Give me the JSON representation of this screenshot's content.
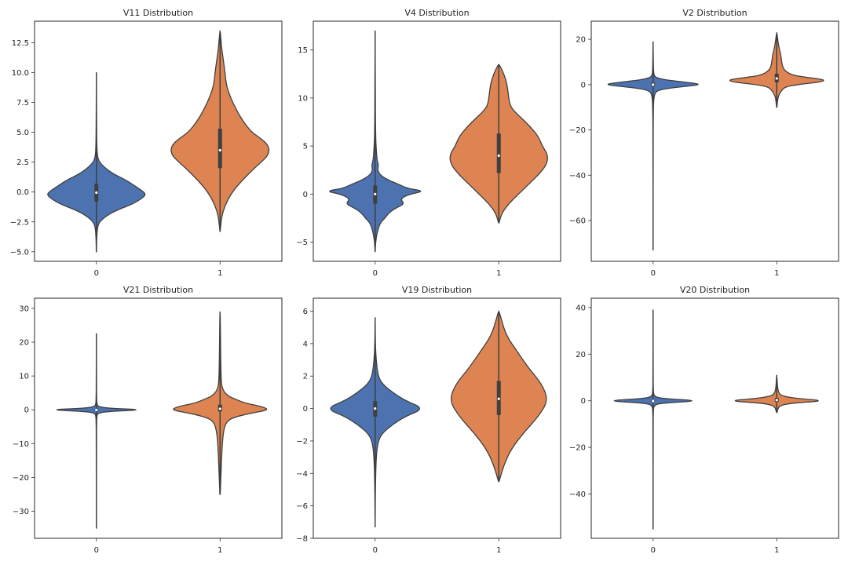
{
  "chart_data": [
    {
      "type": "violin",
      "title": "V11 Distribution",
      "xlabel": "",
      "ylabel": "",
      "categories": [
        "0",
        "1"
      ],
      "colors": [
        "#4c72b0",
        "#dd8452"
      ],
      "ylim": [
        -5.8,
        14.3
      ],
      "yticks": [
        -5.0,
        -2.5,
        0.0,
        2.5,
        5.0,
        7.5,
        10.0,
        12.5
      ],
      "ytick_labels": [
        "−5.0",
        "−2.5",
        "0.0",
        "2.5",
        "5.0",
        "7.5",
        "10.0",
        "12.5"
      ],
      "violins": [
        {
          "category": "0",
          "min": -5.0,
          "max": 10.0,
          "q1": -0.8,
          "median": -0.05,
          "q3": 0.7,
          "density": [
            [
              -5.0,
              0.002
            ],
            [
              -4.0,
              0.005
            ],
            [
              -3.0,
              0.02
            ],
            [
              -2.5,
              0.06
            ],
            [
              -2.0,
              0.2
            ],
            [
              -1.5,
              0.42
            ],
            [
              -1.0,
              0.74
            ],
            [
              -0.5,
              0.93
            ],
            [
              -0.2,
              1.0
            ],
            [
              0.1,
              0.93
            ],
            [
              0.5,
              0.78
            ],
            [
              1.0,
              0.6
            ],
            [
              1.5,
              0.35
            ],
            [
              2.0,
              0.18
            ],
            [
              2.5,
              0.06
            ],
            [
              3.0,
              0.02
            ],
            [
              4.0,
              0.008
            ],
            [
              6.0,
              0.004
            ],
            [
              8.0,
              0.002
            ],
            [
              10.0,
              0.001
            ]
          ]
        },
        {
          "category": "1",
          "min": -3.3,
          "max": 13.5,
          "q1": 2.0,
          "median": 3.5,
          "q3": 5.3,
          "density": [
            [
              -3.3,
              0.002
            ],
            [
              -2.0,
              0.03
            ],
            [
              -1.0,
              0.1
            ],
            [
              0.0,
              0.22
            ],
            [
              1.0,
              0.4
            ],
            [
              2.0,
              0.62
            ],
            [
              2.5,
              0.74
            ],
            [
              3.0,
              0.85
            ],
            [
              3.5,
              0.89
            ],
            [
              4.0,
              0.85
            ],
            [
              4.5,
              0.73
            ],
            [
              5.0,
              0.57
            ],
            [
              6.0,
              0.4
            ],
            [
              7.0,
              0.28
            ],
            [
              8.0,
              0.18
            ],
            [
              9.0,
              0.11
            ],
            [
              10.0,
              0.09
            ],
            [
              11.0,
              0.06
            ],
            [
              12.0,
              0.03
            ],
            [
              13.0,
              0.012
            ],
            [
              13.5,
              0.002
            ]
          ]
        }
      ]
    },
    {
      "type": "violin",
      "title": "V4 Distribution",
      "xlabel": "",
      "ylabel": "",
      "categories": [
        "0",
        "1"
      ],
      "colors": [
        "#4c72b0",
        "#dd8452"
      ],
      "ylim": [
        -7.0,
        18.0
      ],
      "yticks": [
        -5,
        0,
        5,
        10,
        15
      ],
      "ytick_labels": [
        "−5",
        "0",
        "5",
        "10",
        "15"
      ],
      "violins": [
        {
          "category": "0",
          "min": -6.0,
          "max": 17.0,
          "q1": -1.0,
          "median": 0.0,
          "q3": 0.9,
          "density": [
            [
              -6.0,
              0.002
            ],
            [
              -5.0,
              0.01
            ],
            [
              -4.0,
              0.04
            ],
            [
              -3.0,
              0.1
            ],
            [
              -2.5,
              0.2
            ],
            [
              -2.0,
              0.27
            ],
            [
              -1.5,
              0.4
            ],
            [
              -1.0,
              0.6
            ],
            [
              -0.5,
              0.5
            ],
            [
              0.0,
              0.7
            ],
            [
              0.3,
              1.0
            ],
            [
              0.6,
              0.65
            ],
            [
              1.0,
              0.48
            ],
            [
              1.5,
              0.25
            ],
            [
              2.0,
              0.1
            ],
            [
              2.5,
              0.05
            ],
            [
              3.0,
              0.07
            ],
            [
              3.5,
              0.04
            ],
            [
              4.5,
              0.025
            ],
            [
              6.0,
              0.01
            ],
            [
              10.0,
              0.004
            ],
            [
              17.0,
              0.001
            ]
          ]
        },
        {
          "category": "1",
          "min": -3.0,
          "max": 13.5,
          "q1": 2.2,
          "median": 4.0,
          "q3": 6.3,
          "density": [
            [
              -3.0,
              0.002
            ],
            [
              -2.0,
              0.03
            ],
            [
              -1.0,
              0.1
            ],
            [
              0.0,
              0.2
            ],
            [
              1.0,
              0.3
            ],
            [
              2.0,
              0.4
            ],
            [
              3.0,
              0.48
            ],
            [
              4.0,
              0.5
            ],
            [
              5.0,
              0.44
            ],
            [
              6.0,
              0.4
            ],
            [
              7.0,
              0.32
            ],
            [
              8.0,
              0.22
            ],
            [
              9.0,
              0.12
            ],
            [
              10.0,
              0.1
            ],
            [
              11.0,
              0.09
            ],
            [
              12.0,
              0.07
            ],
            [
              13.0,
              0.03
            ],
            [
              13.5,
              0.002
            ]
          ]
        }
      ]
    },
    {
      "type": "violin",
      "title": "V2 Distribution",
      "xlabel": "",
      "ylabel": "",
      "categories": [
        "0",
        "1"
      ],
      "colors": [
        "#4c72b0",
        "#dd8452"
      ],
      "ylim": [
        -78,
        28
      ],
      "yticks": [
        -60,
        -40,
        -20,
        0,
        20
      ],
      "ytick_labels": [
        "−60",
        "−40",
        "−20",
        "0",
        "20"
      ],
      "violins": [
        {
          "category": "0",
          "min": -73.0,
          "max": 19.0,
          "q1": -0.6,
          "median": 0.0,
          "q3": 0.9,
          "density": [
            [
              -73.0,
              0.001
            ],
            [
              -30.0,
              0.002
            ],
            [
              -10.0,
              0.005
            ],
            [
              -5.0,
              0.02
            ],
            [
              -3.0,
              0.06
            ],
            [
              -2.0,
              0.2
            ],
            [
              -1.0,
              0.55
            ],
            [
              0.0,
              1.0
            ],
            [
              1.0,
              0.7
            ],
            [
              2.0,
              0.28
            ],
            [
              3.0,
              0.07
            ],
            [
              4.0,
              0.02
            ],
            [
              6.0,
              0.01
            ],
            [
              10.0,
              0.005
            ],
            [
              19.0,
              0.001
            ]
          ]
        },
        {
          "category": "1",
          "min": -10.0,
          "max": 23.0,
          "q1": 1.0,
          "median": 2.7,
          "q3": 4.8,
          "density": [
            [
              -10.0,
              0.002
            ],
            [
              -7.0,
              0.01
            ],
            [
              -5.0,
              0.02
            ],
            [
              -3.0,
              0.05
            ],
            [
              -1.0,
              0.1
            ],
            [
              0.0,
              0.25
            ],
            [
              1.0,
              0.5
            ],
            [
              2.0,
              0.6
            ],
            [
              3.0,
              0.42
            ],
            [
              4.0,
              0.2
            ],
            [
              6.0,
              0.1
            ],
            [
              8.0,
              0.07
            ],
            [
              10.0,
              0.06
            ],
            [
              13.0,
              0.05
            ],
            [
              16.0,
              0.03
            ],
            [
              19.0,
              0.015
            ],
            [
              23.0,
              0.002
            ]
          ]
        }
      ]
    },
    {
      "type": "violin",
      "title": "V21 Distribution",
      "xlabel": "",
      "ylabel": "",
      "categories": [
        "0",
        "1"
      ],
      "colors": [
        "#4c72b0",
        "#dd8452"
      ],
      "ylim": [
        -38,
        33
      ],
      "yticks": [
        -30,
        -20,
        -10,
        0,
        10,
        20,
        30
      ],
      "ytick_labels": [
        "−30",
        "−20",
        "−10",
        "0",
        "10",
        "20",
        "30"
      ],
      "violins": [
        {
          "category": "0",
          "min": -35.0,
          "max": 22.5,
          "q1": -0.3,
          "median": -0.05,
          "q3": 0.2,
          "density": [
            [
              -35.0,
              0.001
            ],
            [
              -10.0,
              0.002
            ],
            [
              -3.0,
              0.005
            ],
            [
              -1.5,
              0.015
            ],
            [
              -1.0,
              0.04
            ],
            [
              -0.5,
              0.2
            ],
            [
              0.0,
              1.0
            ],
            [
              0.5,
              0.2
            ],
            [
              1.0,
              0.04
            ],
            [
              1.5,
              0.015
            ],
            [
              3.0,
              0.005
            ],
            [
              10.0,
              0.002
            ],
            [
              22.5,
              0.001
            ]
          ]
        },
        {
          "category": "1",
          "min": -25.0,
          "max": 29.0,
          "q1": -0.5,
          "median": 0.3,
          "q3": 1.5,
          "density": [
            [
              -25.0,
              0.001
            ],
            [
              -10.0,
              0.01
            ],
            [
              -5.0,
              0.02
            ],
            [
              -3.0,
              0.04
            ],
            [
              -2.0,
              0.08
            ],
            [
              -1.0,
              0.15
            ],
            [
              0.0,
              0.24
            ],
            [
              1.0,
              0.2
            ],
            [
              2.0,
              0.12
            ],
            [
              3.0,
              0.08
            ],
            [
              4.0,
              0.04
            ],
            [
              6.0,
              0.01
            ],
            [
              10.0,
              0.004
            ],
            [
              29.0,
              0.001
            ]
          ]
        }
      ]
    },
    {
      "type": "violin",
      "title": "V19 Distribution",
      "xlabel": "",
      "ylabel": "",
      "categories": [
        "0",
        "1"
      ],
      "colors": [
        "#4c72b0",
        "#dd8452"
      ],
      "ylim": [
        -8.0,
        6.8
      ],
      "yticks": [
        -8,
        -6,
        -4,
        -2,
        0,
        2,
        4,
        6
      ],
      "ytick_labels": [
        "−8",
        "−6",
        "−4",
        "−2",
        "0",
        "2",
        "4",
        "6"
      ],
      "violins": [
        {
          "category": "0",
          "min": -7.3,
          "max": 5.6,
          "q1": -0.5,
          "median": 0.0,
          "q3": 0.45,
          "density": [
            [
              -7.3,
              0.001
            ],
            [
              -5.0,
              0.005
            ],
            [
              -3.0,
              0.02
            ],
            [
              -2.0,
              0.06
            ],
            [
              -1.5,
              0.15
            ],
            [
              -1.0,
              0.35
            ],
            [
              -0.5,
              0.6
            ],
            [
              0.0,
              1.0
            ],
            [
              0.5,
              0.6
            ],
            [
              1.0,
              0.35
            ],
            [
              1.5,
              0.15
            ],
            [
              2.0,
              0.06
            ],
            [
              3.0,
              0.02
            ],
            [
              4.0,
              0.005
            ],
            [
              5.6,
              0.001
            ]
          ]
        },
        {
          "category": "1",
          "min": -4.5,
          "max": 6.0,
          "q1": -0.4,
          "median": 0.6,
          "q3": 1.7,
          "density": [
            [
              -4.5,
              0.002
            ],
            [
              -3.5,
              0.04
            ],
            [
              -2.5,
              0.1
            ],
            [
              -1.5,
              0.2
            ],
            [
              -0.5,
              0.32
            ],
            [
              0.5,
              0.4
            ],
            [
              1.5,
              0.35
            ],
            [
              2.5,
              0.24
            ],
            [
              3.5,
              0.15
            ],
            [
              4.5,
              0.06
            ],
            [
              5.5,
              0.02
            ],
            [
              6.0,
              0.002
            ]
          ]
        }
      ]
    },
    {
      "type": "violin",
      "title": "V20 Distribution",
      "xlabel": "",
      "ylabel": "",
      "categories": [
        "0",
        "1"
      ],
      "colors": [
        "#4c72b0",
        "#dd8452"
      ],
      "ylim": [
        -59,
        44
      ],
      "yticks": [
        -40,
        -20,
        0,
        20,
        40
      ],
      "ytick_labels": [
        "−40",
        "−20",
        "0",
        "20",
        "40"
      ],
      "violins": [
        {
          "category": "0",
          "min": -55.0,
          "max": 39.0,
          "q1": -0.4,
          "median": -0.1,
          "q3": 0.3,
          "density": [
            [
              -55.0,
              0.001
            ],
            [
              -10.0,
              0.002
            ],
            [
              -4.0,
              0.006
            ],
            [
              -2.0,
              0.02
            ],
            [
              -1.0,
              0.15
            ],
            [
              0.0,
              1.0
            ],
            [
              1.0,
              0.15
            ],
            [
              2.0,
              0.02
            ],
            [
              4.0,
              0.006
            ],
            [
              10.0,
              0.002
            ],
            [
              39.0,
              0.001
            ]
          ]
        },
        {
          "category": "1",
          "min": -5.0,
          "max": 11.0,
          "q1": -0.5,
          "median": 0.3,
          "q3": 1.2,
          "density": [
            [
              -5.0,
              0.005
            ],
            [
              -3.0,
              0.03
            ],
            [
              -2.0,
              0.08
            ],
            [
              -1.0,
              0.3
            ],
            [
              0.0,
              1.0
            ],
            [
              1.0,
              0.4
            ],
            [
              2.0,
              0.12
            ],
            [
              3.0,
              0.05
            ],
            [
              5.0,
              0.02
            ],
            [
              8.0,
              0.01
            ],
            [
              11.0,
              0.002
            ]
          ]
        }
      ]
    }
  ]
}
